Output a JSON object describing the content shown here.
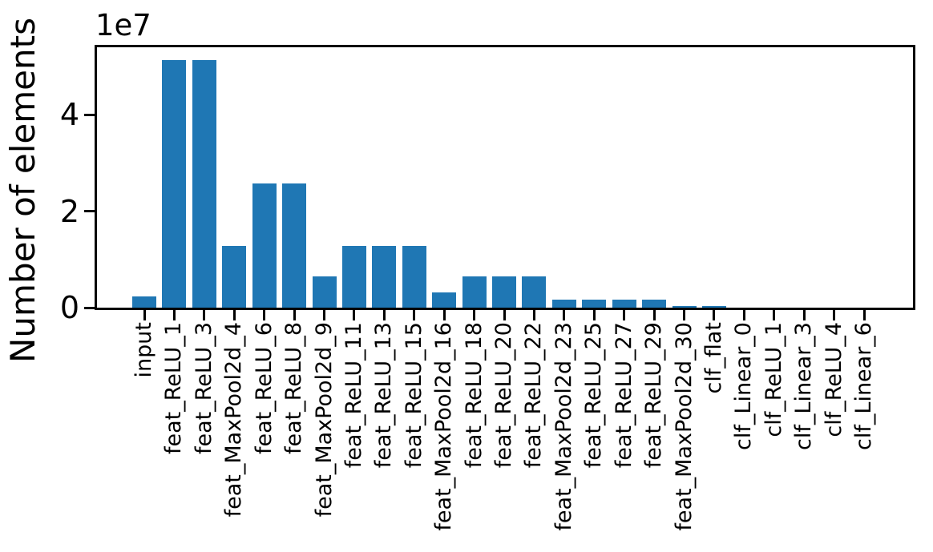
{
  "figure": {
    "background": "#ffffff"
  },
  "chart_data": {
    "type": "bar",
    "title": "",
    "xlabel": "",
    "ylabel": "Number of elements",
    "offset_text": "1e7",
    "bar_color": "#1f77b4",
    "axis_color": "#000000",
    "grid": false,
    "legend": null,
    "ylim": [
      0,
      54000000
    ],
    "y_ticks": [
      0,
      20000000,
      40000000
    ],
    "y_tick_labels": [
      "0",
      "2",
      "4"
    ],
    "categories": [
      "input",
      "feat_ReLU_1",
      "feat_ReLU_3",
      "feat_MaxPool2d_4",
      "feat_ReLU_6",
      "feat_ReLU_8",
      "feat_MaxPool2d_9",
      "feat_ReLU_11",
      "feat_ReLU_13",
      "feat_ReLU_15",
      "feat_MaxPool2d_16",
      "feat_ReLU_18",
      "feat_ReLU_20",
      "feat_ReLU_22",
      "feat_MaxPool2d_23",
      "feat_ReLU_25",
      "feat_ReLU_27",
      "feat_ReLU_29",
      "feat_MaxPool2d_30",
      "clf_flat",
      "clf_Linear_0",
      "clf_ReLU_1",
      "clf_Linear_3",
      "clf_ReLU_4",
      "clf_Linear_6"
    ],
    "values": [
      2408448,
      51380224,
      51380224,
      12845056,
      25690112,
      25690112,
      6422528,
      12845056,
      12845056,
      12845056,
      3211264,
      6422528,
      6422528,
      6422528,
      1605632,
      1605632,
      1605632,
      1605632,
      401408,
      401408,
      65536,
      65536,
      65536,
      65536,
      16000
    ]
  }
}
